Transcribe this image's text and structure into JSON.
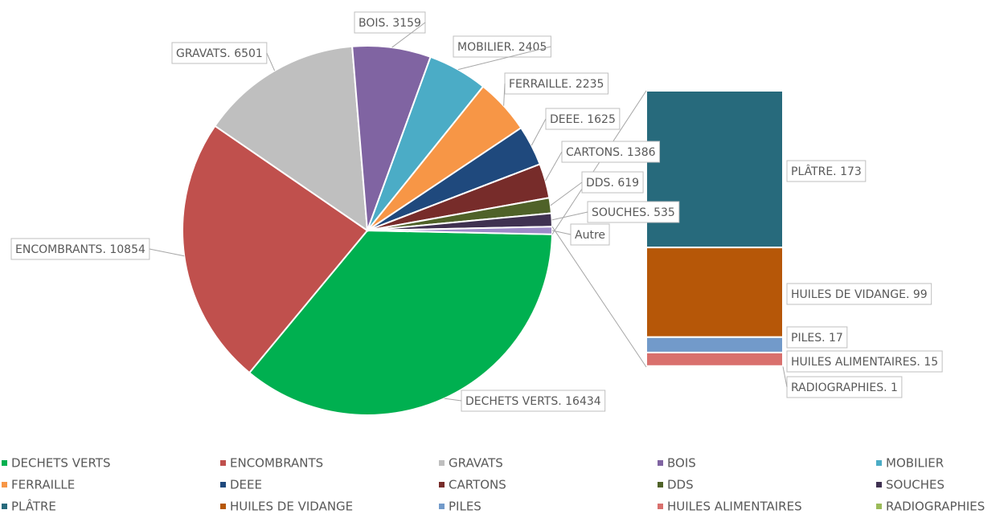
{
  "chart_data": {
    "type": "bar_of_pie",
    "categories": [
      "DECHETS VERTS",
      "ENCOMBRANTS",
      "GRAVATS",
      "BOIS",
      "MOBILIER",
      "FERRAILLE",
      "DEEE",
      "CARTONS",
      "DDS",
      "SOUCHES"
    ],
    "values": [
      16434,
      10854,
      6501,
      3159,
      2405,
      2235,
      1625,
      1386,
      619,
      535
    ],
    "value_labels": [
      "DECHETS VERTS. 16434",
      "ENCOMBRANTS. 10854",
      "GRAVATS. 6501",
      "BOIS. 3159",
      "MOBILIER. 2405",
      "FERRAILLE. 2235",
      "DEEE. 1625",
      "CARTONS. 1386",
      "DDS. 619",
      "SOUCHES. 535"
    ],
    "colors": [
      "#00b050",
      "#c0504d",
      "#bfbfbf",
      "#8064a2",
      "#4bacc6",
      "#f79646",
      "#1f497d",
      "#772c2a",
      "#4f6228",
      "#3f3151"
    ],
    "other_label": "Autre",
    "other_value": 305,
    "other_color": "#9e8bc8",
    "secondary": {
      "categories": [
        "PLÂTRE",
        "HUILES DE VIDANGE",
        "PILES",
        "HUILES ALIMENTAIRES",
        "RADIOGRAPHIES"
      ],
      "values": [
        173,
        99,
        17,
        15,
        1
      ],
      "value_labels": [
        "PLÂTRE. 173",
        "HUILES DE VIDANGE. 99",
        "PILES. 17",
        "HUILES ALIMENTAIRES. 15",
        "RADIOGRAPHIES. 1"
      ],
      "colors": [
        "#276a7c",
        "#b65708",
        "#729aca",
        "#d9706d",
        "#9bbb59"
      ]
    },
    "legend": "bottom"
  }
}
